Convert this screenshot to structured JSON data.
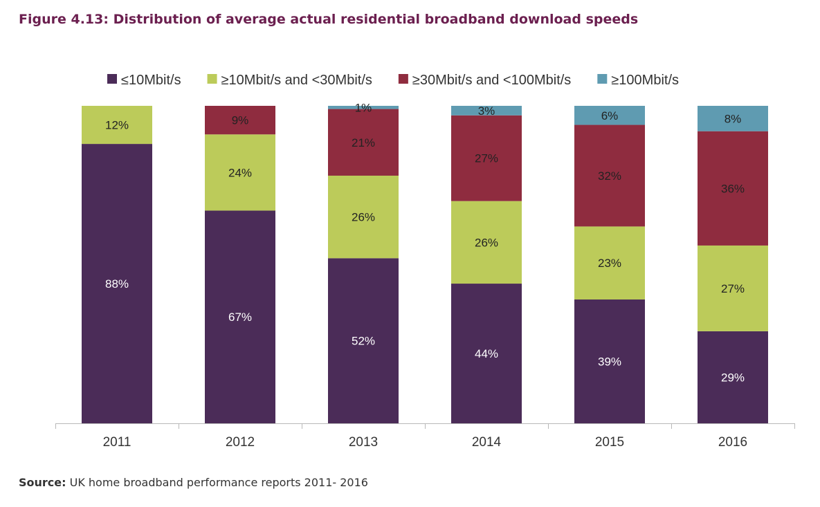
{
  "figure": {
    "title": "Figure 4.13: Distribution of average actual residential broadband download speeds"
  },
  "source": {
    "label": "Source:",
    "text": " UK home broadband performance reports 2011- 2016"
  },
  "chart_data": {
    "type": "bar",
    "stacked": true,
    "categories": [
      "2011",
      "2012",
      "2013",
      "2014",
      "2015",
      "2016"
    ],
    "series": [
      {
        "name": "≤10Mbit/s",
        "color": "#4b2c58",
        "values": [
          88,
          67,
          52,
          44,
          39,
          29
        ],
        "labels": [
          "88%",
          "67%",
          "52%",
          "44%",
          "39%",
          "29%"
        ]
      },
      {
        "name": "≥10Mbit/s and <30Mbit/s",
        "color": "#bccb5a",
        "values": [
          12,
          24,
          26,
          26,
          23,
          27
        ],
        "labels": [
          "12%",
          "24%",
          "26%",
          "26%",
          "23%",
          "27%"
        ]
      },
      {
        "name": "≥30Mbit/s and <100Mbit/s",
        "color": "#8f2c3f",
        "values": [
          0.5,
          9,
          21,
          27,
          32,
          36
        ],
        "labels": [
          "",
          "9%",
          "21%",
          "27%",
          "32%",
          "36%"
        ]
      },
      {
        "name": "≥100Mbit/s",
        "color": "#5f9bb1",
        "values": [
          0,
          0,
          1,
          3,
          6,
          8
        ],
        "labels": [
          "",
          "",
          "1%",
          "3%",
          "6%",
          "8%"
        ]
      }
    ],
    "ylim": [
      0,
      100
    ],
    "legend_position": "top",
    "grid": false
  }
}
